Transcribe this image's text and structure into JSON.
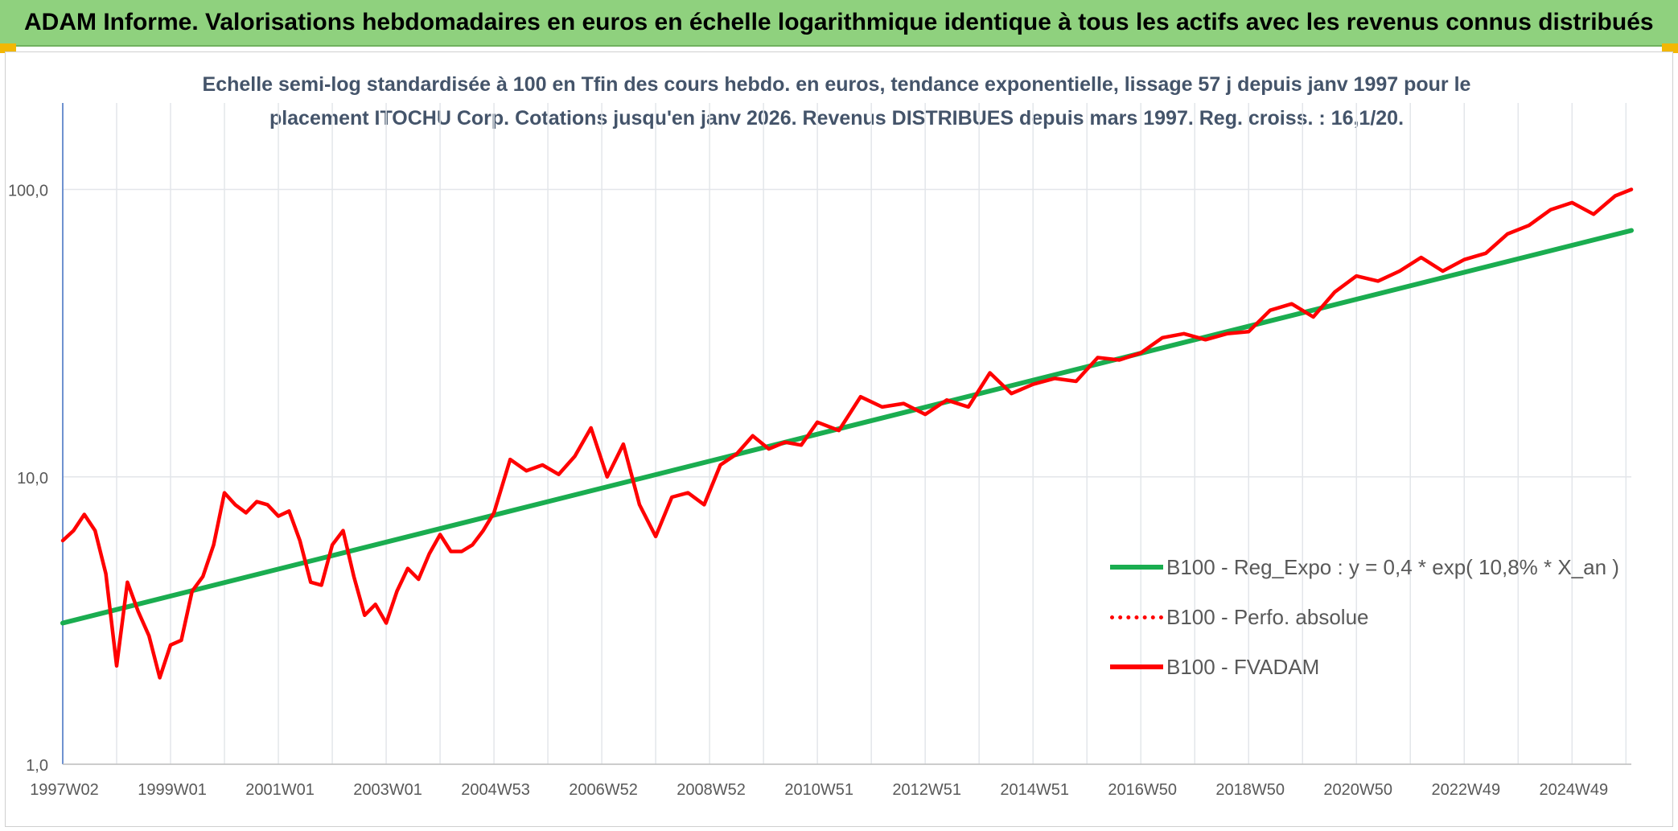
{
  "header": {
    "title": "ADAM Informe. Valorisations hebdomadaires en euros en échelle logarithmique identique à tous les actifs avec les revenus connus distribués"
  },
  "chart_data": {
    "type": "line",
    "title_line1": "Echelle semi-log standardisée à 100 en Tfin des cours hebdo. en euros, tendance exponentielle, lissage 57 j depuis janv 1997 pour le",
    "title_line2": "placement ITOCHU Corp. Cotations jusqu'en janv 2026. Revenus DISTRIBUES depuis mars 1997. Reg. croiss. : 16,1/20.",
    "y_scale": "log",
    "ylim": [
      1,
      200
    ],
    "xlim": [
      1997.0,
      2026.1
    ],
    "y_ticks": [
      {
        "value": 1,
        "label": "1,0"
      },
      {
        "value": 10,
        "label": "10,0"
      },
      {
        "value": 100,
        "label": "100,0"
      }
    ],
    "x_ticks": [
      {
        "value": 1997.0,
        "label": "1997W02"
      },
      {
        "value": 1999.0,
        "label": "1999W01"
      },
      {
        "value": 2001.0,
        "label": "2001W01"
      },
      {
        "value": 2003.0,
        "label": "2003W01"
      },
      {
        "value": 2005.0,
        "label": "2004W53"
      },
      {
        "value": 2007.0,
        "label": "2006W52"
      },
      {
        "value": 2009.0,
        "label": "2008W52"
      },
      {
        "value": 2011.0,
        "label": "2010W51"
      },
      {
        "value": 2013.0,
        "label": "2012W51"
      },
      {
        "value": 2015.0,
        "label": "2014W51"
      },
      {
        "value": 2017.0,
        "label": "2016W50"
      },
      {
        "value": 2019.0,
        "label": "2018W50"
      },
      {
        "value": 2021.0,
        "label": "2020W50"
      },
      {
        "value": 2023.0,
        "label": "2022W49"
      },
      {
        "value": 2025.0,
        "label": "2024W49"
      }
    ],
    "grid": true,
    "legend_position": "bottom-right",
    "series": [
      {
        "name": "B100 - Reg_Expo : y = 0,4 * exp( 10,8% *  X_an )",
        "color": "#1aad50",
        "style": "solid",
        "x": [
          1997.0,
          2026.1
        ],
        "y": [
          3.1,
          72
        ]
      },
      {
        "name": "B100 - Perfo. absolue",
        "color": "#ff0000",
        "style": "dotted",
        "x": [],
        "y": []
      },
      {
        "name": "B100 - FVADAM",
        "color": "#ff0000",
        "style": "solid",
        "x": [
          1997.0,
          1997.2,
          1997.4,
          1997.6,
          1997.8,
          1998.0,
          1998.2,
          1998.4,
          1998.6,
          1998.8,
          1999.0,
          1999.2,
          1999.4,
          1999.6,
          1999.8,
          2000.0,
          2000.2,
          2000.4,
          2000.6,
          2000.8,
          2001.0,
          2001.2,
          2001.4,
          2001.6,
          2001.8,
          2002.0,
          2002.2,
          2002.4,
          2002.6,
          2002.8,
          2003.0,
          2003.2,
          2003.4,
          2003.6,
          2003.8,
          2004.0,
          2004.2,
          2004.4,
          2004.6,
          2004.8,
          2005.0,
          2005.3,
          2005.6,
          2005.9,
          2006.2,
          2006.5,
          2006.8,
          2007.1,
          2007.4,
          2007.7,
          2008.0,
          2008.3,
          2008.6,
          2008.9,
          2009.2,
          2009.5,
          2009.8,
          2010.1,
          2010.4,
          2010.7,
          2011.0,
          2011.4,
          2011.8,
          2012.2,
          2012.6,
          2013.0,
          2013.4,
          2013.8,
          2014.2,
          2014.6,
          2015.0,
          2015.4,
          2015.8,
          2016.2,
          2016.6,
          2017.0,
          2017.4,
          2017.8,
          2018.2,
          2018.6,
          2019.0,
          2019.4,
          2019.8,
          2020.2,
          2020.6,
          2021.0,
          2021.4,
          2021.8,
          2022.2,
          2022.6,
          2023.0,
          2023.4,
          2023.8,
          2024.2,
          2024.6,
          2025.0,
          2025.4,
          2025.8,
          2026.1
        ],
        "y": [
          6.0,
          6.5,
          7.4,
          6.5,
          4.6,
          2.2,
          4.3,
          3.4,
          2.8,
          2.0,
          2.6,
          2.7,
          4.0,
          4.5,
          5.8,
          8.8,
          8.0,
          7.5,
          8.2,
          8.0,
          7.3,
          7.6,
          6.0,
          4.3,
          4.2,
          5.8,
          6.5,
          4.5,
          3.3,
          3.6,
          3.1,
          4.0,
          4.8,
          4.4,
          5.4,
          6.3,
          5.5,
          5.5,
          5.8,
          6.5,
          7.5,
          11.5,
          10.5,
          11.0,
          10.2,
          11.8,
          14.8,
          10.0,
          13.0,
          8.0,
          6.2,
          8.5,
          8.8,
          8.0,
          11.0,
          12.0,
          13.9,
          12.5,
          13.2,
          12.9,
          15.5,
          14.5,
          19.0,
          17.5,
          18.0,
          16.5,
          18.5,
          17.5,
          23.0,
          19.5,
          21.0,
          22.0,
          21.5,
          26.0,
          25.5,
          27.0,
          30.5,
          31.5,
          30.0,
          31.5,
          32.0,
          38.0,
          40.0,
          36.0,
          44.0,
          50.0,
          48.0,
          52.0,
          58.0,
          52.0,
          57.0,
          60.0,
          70.0,
          75.0,
          85.0,
          90.0,
          82.0,
          95.0,
          100.0
        ]
      }
    ]
  }
}
